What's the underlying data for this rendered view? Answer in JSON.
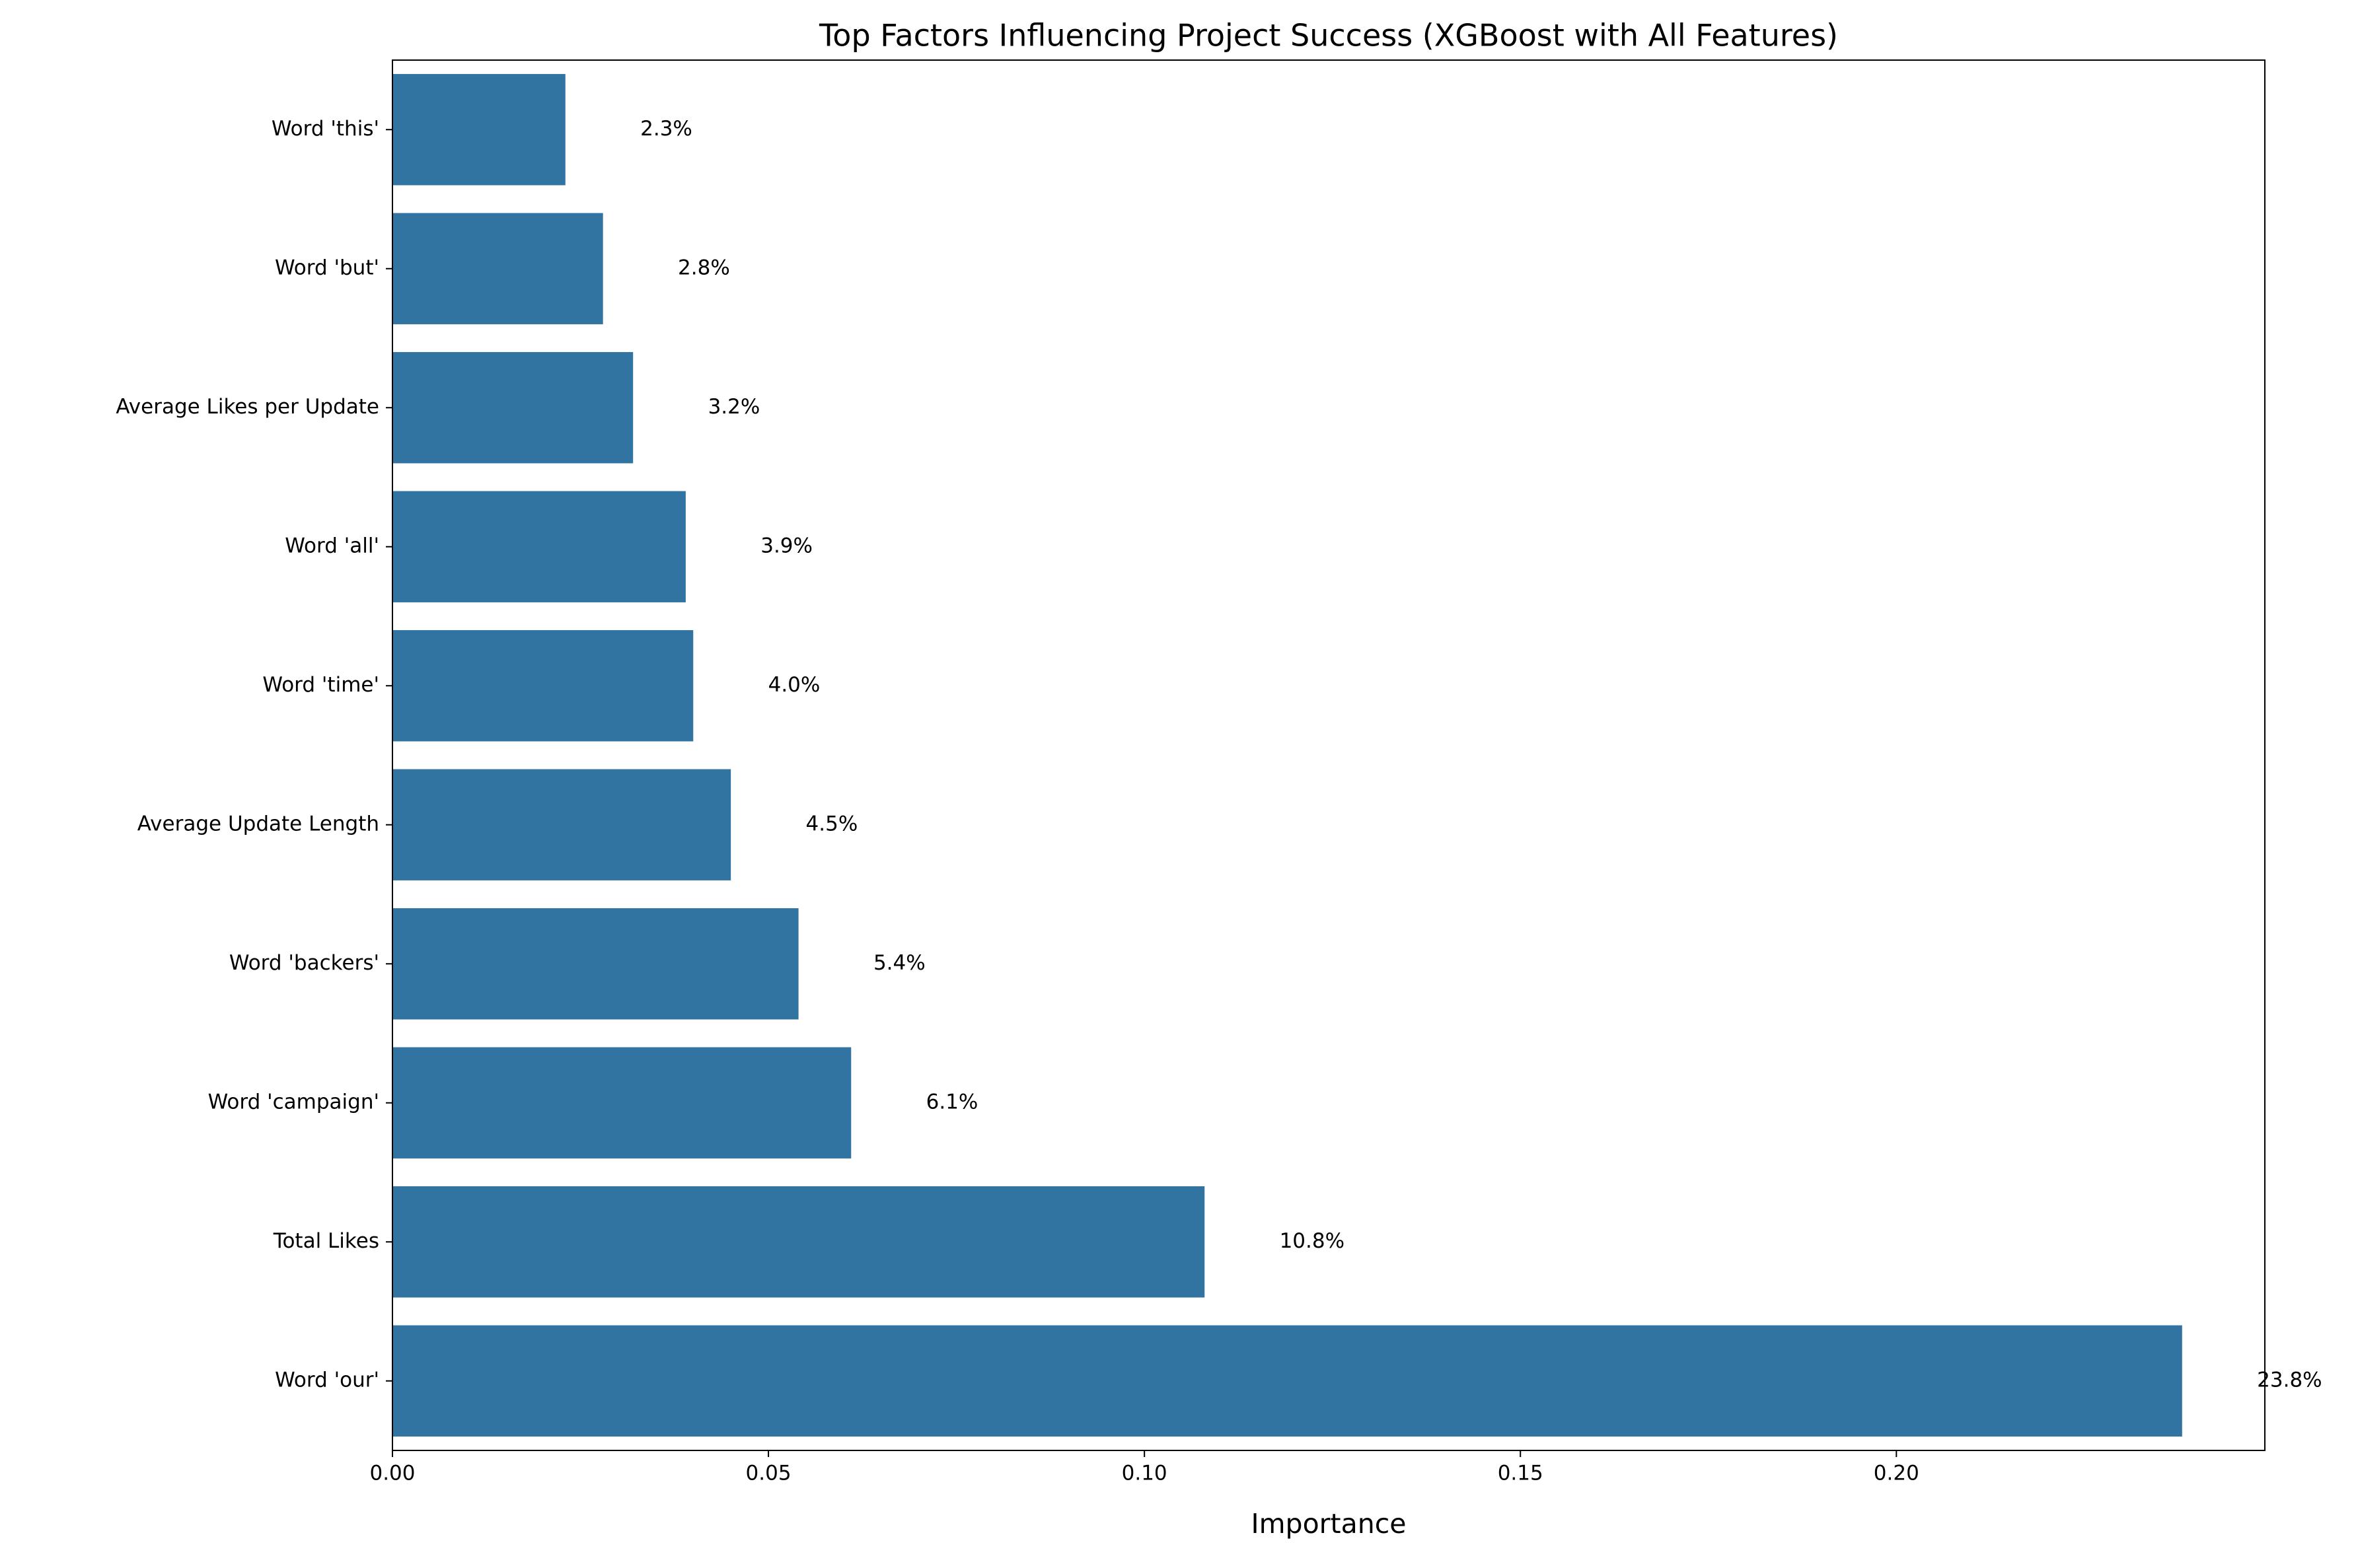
{
  "chart_data": {
    "type": "bar",
    "orientation": "horizontal",
    "title": "Top Factors Influencing Project Success (XGBoost with All Features)",
    "x_label": "Importance",
    "categories": [
      "Word 'this'",
      "Word 'but'",
      "Average Likes per Update",
      "Word 'all'",
      "Word 'time'",
      "Average Update Length",
      "Word 'backers'",
      "Word 'campaign'",
      "Total Likes",
      "Word 'our'"
    ],
    "values": [
      0.023,
      0.028,
      0.032,
      0.039,
      0.04,
      0.045,
      0.054,
      0.061,
      0.108,
      0.238
    ],
    "value_labels": [
      "2.3%",
      "2.8%",
      "3.2%",
      "3.9%",
      "4.0%",
      "4.5%",
      "5.4%",
      "6.1%",
      "10.8%",
      "23.8%"
    ],
    "color": "#3274a1",
    "xlim": [
      0,
      0.249
    ],
    "xticks": [
      {
        "value": 0,
        "label": "0.00"
      },
      0.05,
      {
        "value": 0.1,
        "label": "0.10"
      },
      0.15,
      {
        "value": 0.2,
        "label": "0.20"
      }
    ],
    "grid": false
  }
}
